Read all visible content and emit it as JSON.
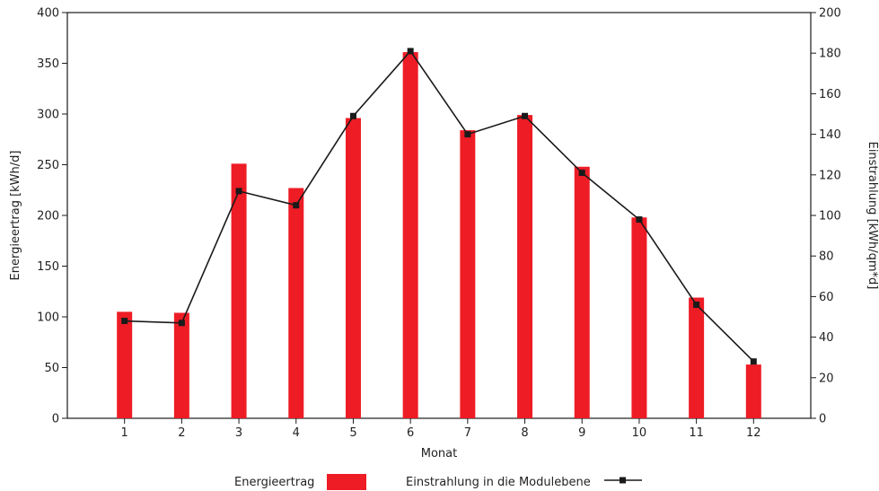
{
  "chart_data": {
    "type": "bar",
    "xlabel": "Monat",
    "ylabel": "Energieertrag [kWh/d]",
    "y2label": "Einstrahlung [kWh/qm*d]",
    "categories": [
      "1",
      "2",
      "3",
      "4",
      "5",
      "6",
      "7",
      "8",
      "9",
      "10",
      "11",
      "12"
    ],
    "ylim": [
      0,
      400
    ],
    "y_ticks": [
      0,
      50,
      100,
      150,
      200,
      250,
      300,
      350,
      400
    ],
    "y2lim": [
      0,
      200
    ],
    "y2_ticks": [
      0,
      20,
      40,
      60,
      80,
      100,
      120,
      140,
      160,
      180,
      200
    ],
    "grid": false,
    "legend_position": "bottom",
    "series": [
      {
        "name": "Energieertrag",
        "type": "bar",
        "axis": "left",
        "color": "#ee1c25",
        "values": [
          105,
          104,
          251,
          227,
          296,
          361,
          284,
          299,
          248,
          198,
          119,
          53
        ]
      },
      {
        "name": "Einstrahlung in die Modulebene",
        "type": "line",
        "axis": "right",
        "color": "#1a1a1a",
        "marker": "square",
        "values": [
          48,
          47,
          112,
          105,
          149,
          181,
          140,
          149,
          121,
          98,
          56,
          28
        ]
      }
    ]
  }
}
